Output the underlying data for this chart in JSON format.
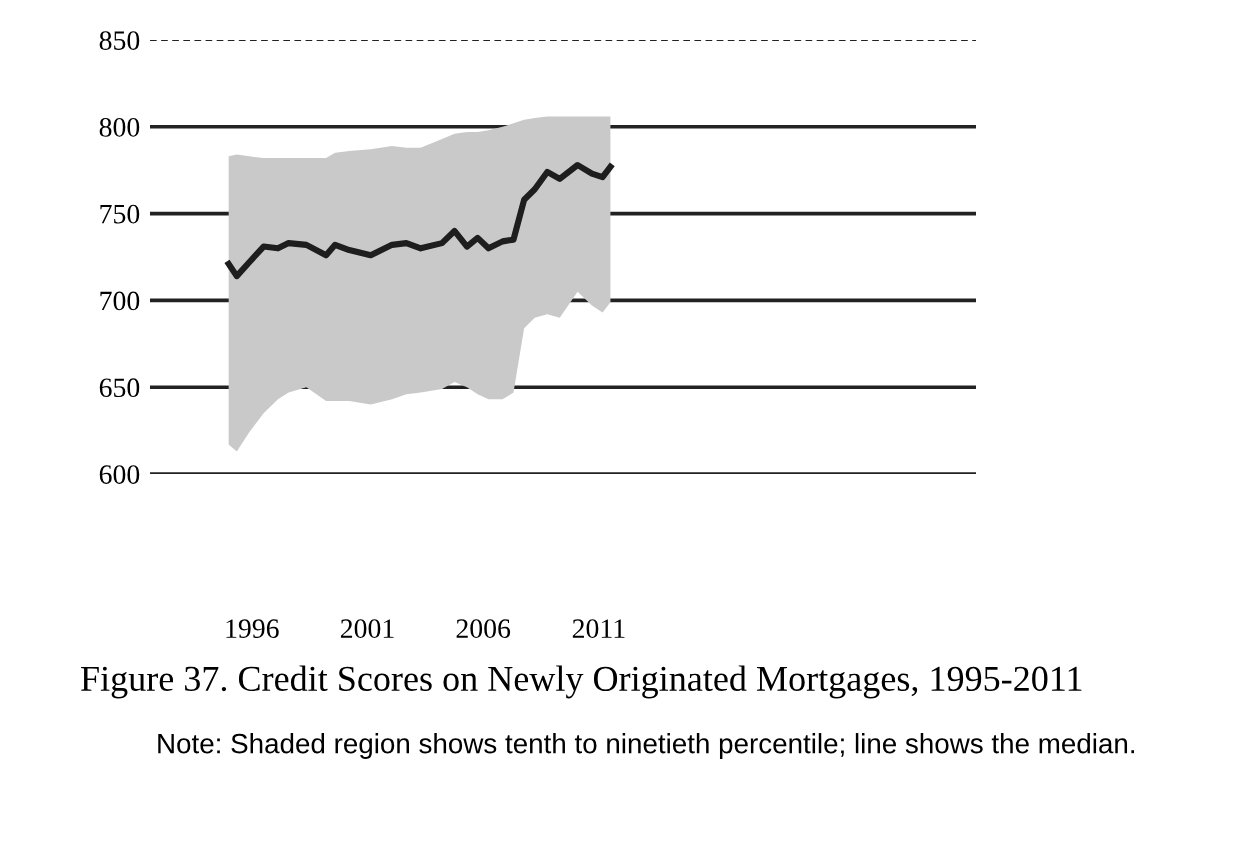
{
  "chart_data": {
    "type": "line",
    "title": "Figure 37. Credit Scores on Newly Originated Mortgages, 1995-2011",
    "annotations": [
      "Note: Shaded region shows tenth to ninetieth percentile; line shows the median."
    ],
    "x": [
      1995.0,
      1995.35,
      1995.89,
      1996.51,
      1997.13,
      1997.59,
      1998.36,
      1999.21,
      1999.6,
      2000.21,
      2001.14,
      2002.06,
      2002.68,
      2003.3,
      2004.22,
      2004.76,
      2005.3,
      2005.76,
      2006.23,
      2006.84,
      2007.31,
      2007.77,
      2008.23,
      2008.77,
      2009.31,
      2010.08,
      2010.7,
      2011.16,
      2011.5
    ],
    "series": [
      {
        "color": "#1e1e1e",
        "values": [
          721,
          714,
          722,
          731,
          730,
          733,
          732,
          726,
          732,
          729,
          726,
          732,
          733,
          730,
          733,
          740,
          731,
          736,
          730,
          734,
          735,
          758,
          764,
          774,
          770,
          778,
          773,
          771,
          777
        ],
        "upper": [
          783,
          784,
          783,
          782,
          782,
          782,
          782,
          782,
          785,
          786,
          787,
          789,
          788,
          788,
          793,
          796,
          797,
          797,
          798,
          800,
          802,
          804,
          805,
          806,
          806,
          806,
          806,
          806,
          806
        ],
        "lower": [
          617,
          613,
          624,
          635,
          643,
          647,
          650,
          642,
          642,
          642,
          640,
          643,
          646,
          647,
          649,
          653,
          650,
          646,
          643,
          643,
          647,
          684,
          690,
          692,
          690,
          705,
          697,
          693,
          699
        ]
      }
    ],
    "xlim": [
      1991.6,
      2027.3
    ],
    "xticks": [
      1996,
      2001,
      2006,
      2011
    ],
    "ylim": [
      600,
      850
    ],
    "yticks": [
      600,
      650,
      700,
      750,
      800,
      850
    ],
    "grid": "y",
    "legend": false,
    "line_style": "solid",
    "marker": "none"
  }
}
